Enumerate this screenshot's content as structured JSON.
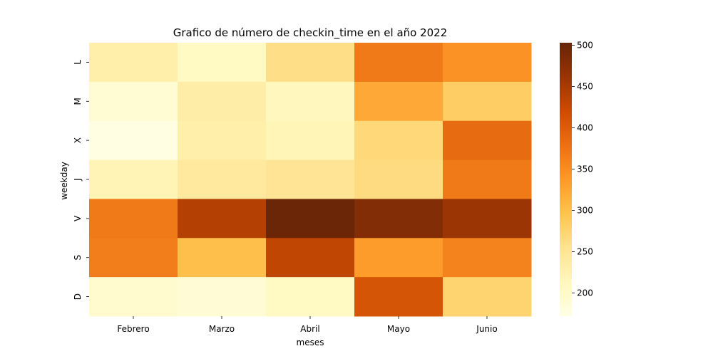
{
  "chart_data": {
    "type": "heatmap",
    "title": "Grafico de número de checkin_time en el año 2022",
    "xlabel": "meses",
    "ylabel": "weekday",
    "x_categories": [
      "Febrero",
      "Marzo",
      "Abril",
      "Mayo",
      "Junio"
    ],
    "y_categories": [
      "L",
      "M",
      "X",
      "J",
      "V",
      "S",
      "D"
    ],
    "values": [
      [
        230,
        205,
        262,
        370,
        345
      ],
      [
        190,
        235,
        212,
        322,
        283
      ],
      [
        175,
        230,
        218,
        270,
        385
      ],
      [
        220,
        242,
        252,
        265,
        370
      ],
      [
        370,
        440,
        500,
        480,
        460
      ],
      [
        365,
        300,
        430,
        335,
        360
      ],
      [
        195,
        188,
        205,
        410,
        275
      ]
    ],
    "colorbar": {
      "min": 172,
      "max": 503,
      "ticks": [
        200,
        250,
        300,
        350,
        400,
        450,
        500
      ]
    },
    "colormap": "YlOrBr"
  }
}
